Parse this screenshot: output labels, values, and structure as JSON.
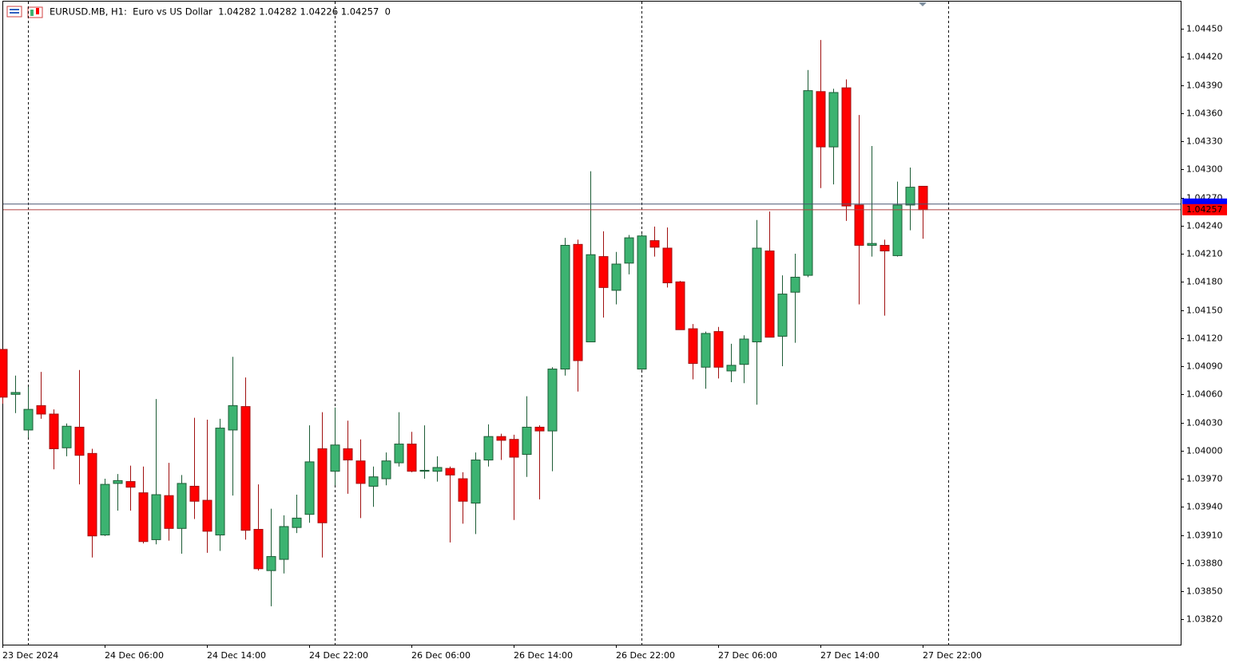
{
  "chart_data": {
    "type": "candlestick",
    "title": "EURUSD.MB, H1:  Euro vs US Dollar  1.04282 1.04282 1.04226 1.04257  0",
    "categories": [
      "23 Dec 2024",
      null,
      null,
      null,
      null,
      null,
      null,
      null,
      "24 Dec 06:00",
      null,
      null,
      null,
      null,
      null,
      null,
      null,
      "24 Dec 14:00",
      null,
      null,
      null,
      null,
      null,
      null,
      null,
      "24 Dec 22:00",
      null,
      null,
      null,
      null,
      null,
      null,
      null,
      "26 Dec 06:00",
      null,
      null,
      null,
      null,
      null,
      null,
      null,
      "26 Dec 14:00",
      null,
      null,
      null,
      null,
      null,
      null,
      null,
      "26 Dec 22:00",
      null,
      null,
      null,
      null,
      null,
      null,
      null,
      "27 Dec 06:00",
      null,
      null,
      null,
      null,
      null,
      null,
      null,
      "27 Dec 14:00",
      null,
      null,
      null,
      null,
      null,
      null,
      null,
      "27 Dec 22:00"
    ],
    "series": {
      "open": [
        1.04108,
        1.0406,
        1.04022,
        1.04048,
        1.04039,
        1.04003,
        1.04025,
        1.03997,
        1.0391,
        1.03965,
        1.03967,
        1.03955,
        1.03905,
        1.03952,
        1.03917,
        1.03962,
        1.03947,
        1.0391,
        1.04022,
        1.04047,
        1.03916,
        1.03872,
        1.03884,
        1.03918,
        1.03932,
        1.04002,
        1.03978,
        1.04002,
        1.03989,
        1.03962,
        1.0397,
        1.03987,
        1.04007,
        1.03978,
        1.03978,
        1.03981,
        1.0397,
        1.03944,
        1.0399,
        1.04015,
        1.04012,
        1.03996,
        1.04025,
        1.04021,
        1.04087,
        1.0422,
        1.04116,
        1.04207,
        1.04171,
        1.042,
        1.04087,
        1.04224,
        1.04216,
        1.0418,
        1.0413,
        1.04089,
        1.04127,
        1.04085,
        1.04092,
        1.04116,
        1.04213,
        1.04122,
        1.04169,
        1.04187,
        1.04383,
        1.04324,
        1.04387,
        1.04262,
        1.04219,
        1.04219,
        1.04208,
        1.04262,
        1.04282
      ],
      "high": [
        1.04108,
        1.0408,
        1.04068,
        1.04084,
        1.04044,
        1.04029,
        1.04086,
        1.04002,
        1.0397,
        1.03975,
        1.03984,
        1.03983,
        1.04055,
        1.03987,
        1.03974,
        1.04035,
        1.04033,
        1.04034,
        1.041,
        1.04078,
        1.03964,
        1.03938,
        1.03931,
        1.03953,
        1.04027,
        1.04041,
        1.04046,
        1.04032,
        1.04012,
        1.03983,
        1.03998,
        1.04041,
        1.0402,
        1.04027,
        1.03994,
        1.03983,
        1.03977,
        1.03998,
        1.04028,
        1.04018,
        1.04017,
        1.04058,
        1.04027,
        1.04089,
        1.04227,
        1.04225,
        1.04298,
        1.04234,
        1.04212,
        1.0423,
        1.04231,
        1.04239,
        1.04238,
        1.04181,
        1.04135,
        1.04127,
        1.04132,
        1.04114,
        1.04123,
        1.04246,
        1.04255,
        1.04187,
        1.0421,
        1.04406,
        1.04438,
        1.04386,
        1.04396,
        1.04358,
        1.04325,
        1.04225,
        1.04287,
        1.04302,
        1.04282
      ],
      "low": [
        1.0405,
        1.0404,
        1.04014,
        1.04034,
        1.0398,
        1.03994,
        1.03964,
        1.03886,
        1.03909,
        1.03936,
        1.03936,
        1.03901,
        1.039,
        1.03904,
        1.0389,
        1.03927,
        1.03891,
        1.03893,
        1.03952,
        1.03905,
        1.03872,
        1.03834,
        1.03869,
        1.03912,
        1.03923,
        1.03886,
        1.03963,
        1.03954,
        1.03928,
        1.0394,
        1.03963,
        1.03983,
        1.03977,
        1.0397,
        1.03967,
        1.03902,
        1.03922,
        1.03911,
        1.03983,
        1.0399,
        1.03926,
        1.03972,
        1.03948,
        1.03978,
        1.0408,
        1.04063,
        1.04116,
        1.04142,
        1.04156,
        1.04188,
        1.04086,
        1.04207,
        1.04174,
        1.04129,
        1.04076,
        1.04066,
        1.04077,
        1.04073,
        1.04072,
        1.04049,
        1.04121,
        1.0409,
        1.04115,
        1.04185,
        1.0428,
        1.04284,
        1.04245,
        1.04156,
        1.04207,
        1.04144,
        1.04207,
        1.04235,
        1.04226
      ],
      "close": [
        1.04057,
        1.04062,
        1.04044,
        1.04039,
        1.04002,
        1.04026,
        1.03995,
        1.03909,
        1.03964,
        1.03968,
        1.03961,
        1.03903,
        1.03953,
        1.03917,
        1.03965,
        1.03946,
        1.03914,
        1.04024,
        1.04048,
        1.03915,
        1.03874,
        1.03887,
        1.03919,
        1.03928,
        1.03988,
        1.03923,
        1.04006,
        1.0399,
        1.03965,
        1.03972,
        1.03989,
        1.04007,
        1.03978,
        1.03979,
        1.03982,
        1.03974,
        1.03946,
        1.0399,
        1.04015,
        1.04011,
        1.03993,
        1.04025,
        1.04021,
        1.04087,
        1.04219,
        1.04096,
        1.04209,
        1.04174,
        1.04199,
        1.04227,
        1.04229,
        1.04217,
        1.04179,
        1.04129,
        1.04093,
        1.04125,
        1.04089,
        1.04091,
        1.04119,
        1.04216,
        1.04121,
        1.04167,
        1.04185,
        1.04384,
        1.04324,
        1.04382,
        1.04261,
        1.04219,
        1.04221,
        1.04213,
        1.04262,
        1.04281,
        1.04257
      ]
    },
    "up_color": "#3cb371",
    "up_border": "#1d5c36",
    "down_color": "#ff0000",
    "down_border": "#a01010",
    "ylim": [
      1.03793,
      1.04479
    ],
    "yticks": [
      {
        "value": 1.0445,
        "label": "1.04450"
      },
      {
        "value": 1.0442,
        "label": "1.04420"
      },
      {
        "value": 1.0439,
        "label": "1.04390"
      },
      {
        "value": 1.0436,
        "label": "1.04360"
      },
      {
        "value": 1.0433,
        "label": "1.04330"
      },
      {
        "value": 1.043,
        "label": "1.04300"
      },
      {
        "value": 1.0427,
        "label": "1.04270"
      },
      {
        "value": 1.0424,
        "label": "1.04240"
      },
      {
        "value": 1.0421,
        "label": "1.04210"
      },
      {
        "value": 1.0418,
        "label": "1.04180"
      },
      {
        "value": 1.0415,
        "label": "1.04150"
      },
      {
        "value": 1.0412,
        "label": "1.04120"
      },
      {
        "value": 1.0409,
        "label": "1.04090"
      },
      {
        "value": 1.0406,
        "label": "1.04060"
      },
      {
        "value": 1.0403,
        "label": "1.04030"
      },
      {
        "value": 1.04,
        "label": "1.04000"
      },
      {
        "value": 1.0397,
        "label": "1.03970"
      },
      {
        "value": 1.0394,
        "label": "1.03940"
      },
      {
        "value": 1.0391,
        "label": "1.03910"
      },
      {
        "value": 1.0388,
        "label": "1.03880"
      },
      {
        "value": 1.0385,
        "label": "1.03850"
      },
      {
        "value": 1.0382,
        "label": "1.03820"
      }
    ],
    "ask_line": {
      "value": 1.04263,
      "color": "#0000ff"
    },
    "bid_line": {
      "value": 1.04257,
      "label": "1.04257",
      "color": "#ff0000"
    }
  }
}
